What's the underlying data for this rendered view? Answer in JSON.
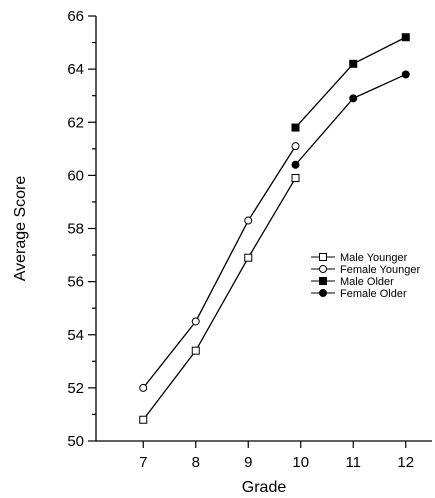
{
  "chart_data": {
    "type": "line",
    "title": "",
    "xlabel": "Grade",
    "ylabel": "Average Score",
    "x_ticks": [
      7,
      8,
      9,
      10,
      11,
      12
    ],
    "xlim": [
      6.1,
      12.5
    ],
    "ylim": [
      50,
      66
    ],
    "y_ticks": [
      50,
      52,
      54,
      56,
      58,
      60,
      62,
      64,
      66
    ],
    "y_minor_step": 1,
    "grid": false,
    "legend_position": "right",
    "series": [
      {
        "name": "Male Younger",
        "marker": "open-square",
        "points": [
          {
            "x": 7,
            "y": 50.8
          },
          {
            "x": 8,
            "y": 53.4
          },
          {
            "x": 9,
            "y": 56.9
          },
          {
            "x": 9.9,
            "y": 59.9
          }
        ]
      },
      {
        "name": "Female Younger",
        "marker": "open-circle",
        "points": [
          {
            "x": 7,
            "y": 52.0
          },
          {
            "x": 8,
            "y": 54.5
          },
          {
            "x": 9,
            "y": 58.3
          },
          {
            "x": 9.9,
            "y": 61.1
          }
        ]
      },
      {
        "name": "Male Older",
        "marker": "filled-square",
        "points": [
          {
            "x": 9.9,
            "y": 61.8
          },
          {
            "x": 11,
            "y": 64.2
          },
          {
            "x": 12,
            "y": 65.2
          }
        ]
      },
      {
        "name": "Female Older",
        "marker": "filled-circle",
        "points": [
          {
            "x": 9.9,
            "y": 60.4
          },
          {
            "x": 11,
            "y": 62.9
          },
          {
            "x": 12,
            "y": 63.8
          }
        ]
      }
    ]
  }
}
